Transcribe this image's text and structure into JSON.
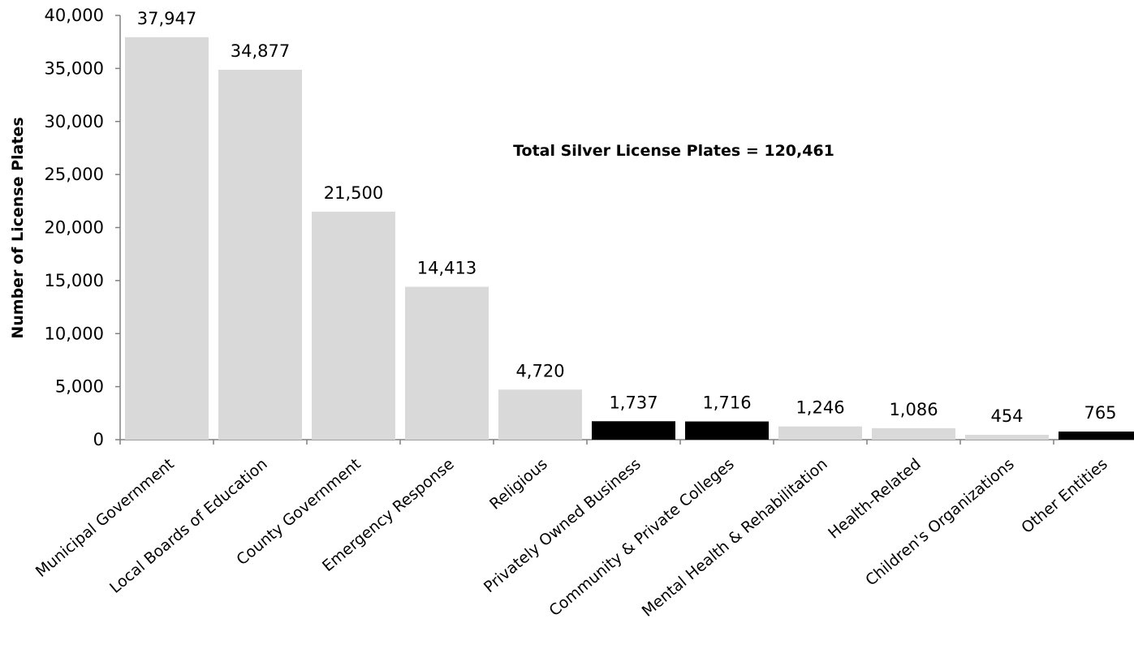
{
  "chart_data": {
    "type": "bar",
    "title": "",
    "xlabel": "",
    "ylabel": "Number of License Plates",
    "ylim": [
      0,
      40000
    ],
    "yticks": [
      "0",
      "5,000",
      "10,000",
      "15,000",
      "20,000",
      "25,000",
      "30,000",
      "35,000",
      "40,000"
    ],
    "categories": [
      "Municipal Government",
      "Local Boards of Education",
      "County Government",
      "Emergency Response",
      "Religious",
      "Privately Owned Business",
      "Community & Private Colleges",
      "Mental Health & Rehabilitation",
      "Health-Related",
      "Children's Organizations",
      "Other Entities"
    ],
    "values": [
      37947,
      34877,
      21500,
      14413,
      4720,
      1737,
      1716,
      1246,
      1086,
      454,
      765
    ],
    "data_labels": [
      "37,947",
      "34,877",
      "21,500",
      "14,413",
      "4,720",
      "1,737",
      "1,716",
      "1,246",
      "1,086",
      "454",
      "765"
    ],
    "colors": [
      "#d9d9d9",
      "#d9d9d9",
      "#d9d9d9",
      "#d9d9d9",
      "#d9d9d9",
      "#000000",
      "#000000",
      "#d9d9d9",
      "#d9d9d9",
      "#d9d9d9",
      "#000000"
    ],
    "annotation": "Total Silver License Plates = 120,461",
    "grid": false,
    "legend": "none",
    "axis_color": "#808080"
  }
}
